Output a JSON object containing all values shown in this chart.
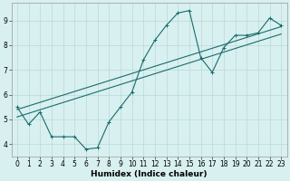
{
  "title": "",
  "xlabel": "Humidex (Indice chaleur)",
  "bg_color": "#d9f0f0",
  "grid_color": "#b8d8d8",
  "line_color": "#1a6b6b",
  "xlim": [
    -0.5,
    23.5
  ],
  "ylim": [
    3.5,
    9.7
  ],
  "xticks": [
    0,
    1,
    2,
    3,
    4,
    5,
    6,
    7,
    8,
    9,
    10,
    11,
    12,
    13,
    14,
    15,
    16,
    17,
    18,
    19,
    20,
    21,
    22,
    23
  ],
  "yticks": [
    4,
    5,
    6,
    7,
    8,
    9
  ],
  "lines": [
    {
      "x": [
        0,
        1,
        2,
        3,
        4,
        5,
        6,
        7,
        8,
        9,
        10,
        11,
        12,
        13,
        14,
        15,
        16,
        17,
        18,
        19,
        20,
        21,
        22,
        23
      ],
      "y": [
        5.5,
        4.8,
        5.3,
        4.3,
        4.3,
        4.3,
        3.8,
        3.85,
        4.9,
        5.5,
        6.1,
        7.4,
        8.2,
        8.8,
        9.3,
        9.4,
        7.5,
        6.9,
        7.9,
        8.4,
        8.4,
        8.5,
        9.1,
        8.8
      ],
      "marker": true
    },
    {
      "x": [
        0,
        23
      ],
      "y": [
        5.4,
        8.75
      ],
      "marker": false
    },
    {
      "x": [
        0,
        23
      ],
      "y": [
        5.1,
        8.45
      ],
      "marker": false
    }
  ],
  "xlabel_fontsize": 6.5,
  "xlabel_fontweight": "bold",
  "tick_fontsize": 5.5
}
